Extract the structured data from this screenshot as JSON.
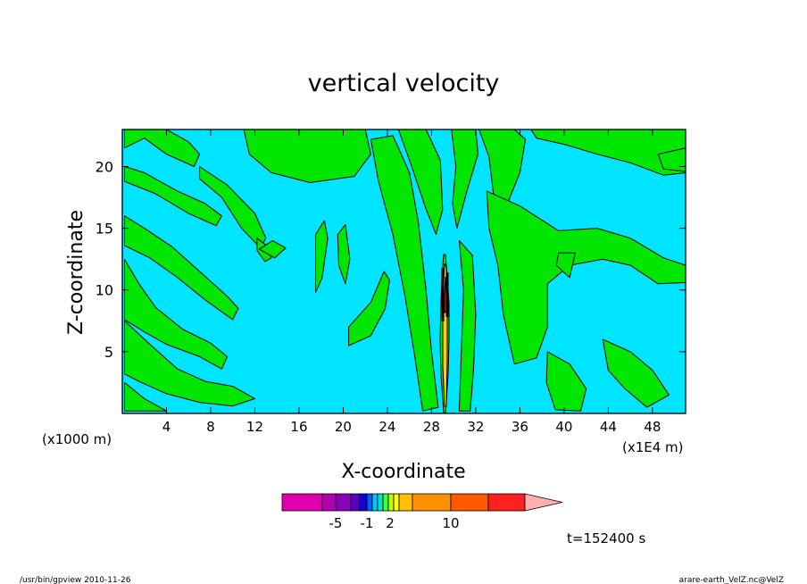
{
  "chart_data": {
    "type": "heatmap",
    "title": "vertical velocity",
    "xlabel": "X-coordinate",
    "ylabel": "Z-coordinate",
    "x_unit_left": "(x1000 m)",
    "x_unit_right": "(x1E4 m)",
    "xlim": [
      0,
      51
    ],
    "ylim": [
      0,
      23
    ],
    "x_ticks": [
      "4",
      "8",
      "12",
      "16",
      "20",
      "24",
      "28",
      "32",
      "36",
      "40",
      "44",
      "48"
    ],
    "x_tick_values": [
      4,
      8,
      12,
      16,
      20,
      24,
      28,
      32,
      36,
      40,
      44,
      48
    ],
    "y_ticks": [
      "5",
      "10",
      "15",
      "20"
    ],
    "y_tick_values": [
      5,
      10,
      15,
      20
    ],
    "colors": {
      "background_band": "#00e5ff",
      "positive_band": "#00e600",
      "contour_line": "#000000"
    },
    "green_regions": [
      {
        "points": [
          [
            0.2,
            23
          ],
          [
            4,
            23
          ],
          [
            6,
            22
          ],
          [
            7,
            21
          ],
          [
            6.5,
            20
          ],
          [
            4,
            21
          ],
          [
            2,
            22.3
          ],
          [
            0.2,
            21.5
          ]
        ]
      },
      {
        "points": [
          [
            0.2,
            20
          ],
          [
            2,
            19.5
          ],
          [
            5,
            18
          ],
          [
            7.5,
            17
          ],
          [
            9,
            16
          ],
          [
            8.5,
            15.2
          ],
          [
            6,
            16.2
          ],
          [
            3,
            17.8
          ],
          [
            0.2,
            18.8
          ]
        ]
      },
      {
        "points": [
          [
            0.2,
            16
          ],
          [
            2,
            15
          ],
          [
            4.5,
            13.5
          ],
          [
            7,
            11.5
          ],
          [
            9.5,
            9.5
          ],
          [
            10.5,
            8.5
          ],
          [
            10,
            7.6
          ],
          [
            7.5,
            9.2
          ],
          [
            5,
            11
          ],
          [
            2.5,
            12.6
          ],
          [
            0.2,
            13.6
          ]
        ]
      },
      {
        "points": [
          [
            0.2,
            12.5
          ],
          [
            1.5,
            10.5
          ],
          [
            3,
            8.6
          ],
          [
            5.5,
            6.8
          ],
          [
            8,
            5.7
          ],
          [
            9.5,
            4.6
          ],
          [
            9,
            3.6
          ],
          [
            7,
            4.6
          ],
          [
            4,
            5.6
          ],
          [
            2,
            6.6
          ],
          [
            0.2,
            7.6
          ]
        ]
      },
      {
        "points": [
          [
            0.2,
            7.5
          ],
          [
            2.5,
            5.6
          ],
          [
            5,
            3.6
          ],
          [
            7.5,
            2.6
          ],
          [
            10,
            2.2
          ],
          [
            12,
            1.2
          ],
          [
            10,
            0.6
          ],
          [
            7,
            0.9
          ],
          [
            4,
            1.6
          ],
          [
            1.5,
            2.6
          ],
          [
            0.2,
            3.2
          ]
        ]
      },
      {
        "points": [
          [
            0.2,
            2.5
          ],
          [
            2,
            1.2
          ],
          [
            4,
            0.2
          ],
          [
            0.2,
            0.2
          ]
        ]
      },
      {
        "points": [
          [
            11,
            23
          ],
          [
            22,
            23
          ],
          [
            22.5,
            21
          ],
          [
            21,
            19.2
          ],
          [
            17,
            18.7
          ],
          [
            13.5,
            19.5
          ],
          [
            11.5,
            21
          ]
        ]
      },
      {
        "points": [
          [
            7,
            20
          ],
          [
            9.5,
            18.5
          ],
          [
            12,
            16.2
          ],
          [
            13,
            14.2
          ],
          [
            12.5,
            13.4
          ],
          [
            10.8,
            15
          ],
          [
            9,
            17.5
          ],
          [
            7,
            19
          ]
        ]
      },
      {
        "points": [
          [
            12.2,
            14.2
          ],
          [
            13.2,
            13.5
          ],
          [
            13.5,
            12.6
          ],
          [
            12.9,
            12.3
          ],
          [
            12.2,
            13.2
          ]
        ]
      },
      {
        "points": [
          [
            12.4,
            13.3
          ],
          [
            13.6,
            14
          ],
          [
            14.8,
            13.4
          ],
          [
            13.8,
            12.6
          ]
        ]
      },
      {
        "points": [
          [
            17.5,
            14.5
          ],
          [
            18.3,
            15.6
          ],
          [
            18.6,
            14.2
          ],
          [
            18.1,
            11
          ],
          [
            17.5,
            9.8
          ]
        ]
      },
      {
        "points": [
          [
            19.5,
            14.5
          ],
          [
            20.2,
            15.3
          ],
          [
            20.6,
            12.5
          ],
          [
            20.2,
            10.5
          ],
          [
            19.6,
            12
          ]
        ]
      },
      {
        "points": [
          [
            22.5,
            22.2
          ],
          [
            24.5,
            22.5
          ],
          [
            26,
            19.5
          ],
          [
            26.8,
            15.5
          ],
          [
            27.5,
            10
          ],
          [
            28,
            5
          ],
          [
            28.6,
            0.5
          ],
          [
            27.2,
            0.2
          ],
          [
            26.5,
            4.5
          ],
          [
            25.6,
            9.5
          ],
          [
            24.5,
            14.5
          ],
          [
            23.2,
            18.8
          ]
        ]
      },
      {
        "points": [
          [
            25,
            23
          ],
          [
            27.5,
            23
          ],
          [
            28.8,
            20.5
          ],
          [
            29,
            16.5
          ],
          [
            28.4,
            14.5
          ],
          [
            27.4,
            16.8
          ],
          [
            26.2,
            20
          ]
        ]
      },
      {
        "points": [
          [
            29.8,
            23
          ],
          [
            32,
            23
          ],
          [
            32.2,
            21
          ],
          [
            31.2,
            18
          ],
          [
            30.3,
            15
          ],
          [
            29.9,
            17
          ],
          [
            30.2,
            20
          ]
        ]
      },
      {
        "points": [
          [
            32.3,
            23
          ],
          [
            35.5,
            23
          ],
          [
            36.5,
            22.2
          ],
          [
            36,
            19.5
          ],
          [
            34.5,
            16.2
          ],
          [
            33.6,
            17.8
          ],
          [
            33.2,
            20.8
          ]
        ]
      },
      {
        "points": [
          [
            30.5,
            14
          ],
          [
            31.7,
            12.8
          ],
          [
            32,
            8
          ],
          [
            31.8,
            3.5
          ],
          [
            31.5,
            0.2
          ],
          [
            30.5,
            0.2
          ],
          [
            30.7,
            5
          ],
          [
            30.9,
            10
          ]
        ]
      },
      {
        "points": [
          [
            20.5,
            7
          ],
          [
            22.5,
            9
          ],
          [
            23.7,
            11.5
          ],
          [
            24.2,
            10.8
          ],
          [
            23.8,
            8.5
          ],
          [
            22.5,
            6.3
          ],
          [
            20.5,
            5.5
          ]
        ]
      },
      {
        "points": [
          [
            37,
            23
          ],
          [
            51,
            23
          ],
          [
            51,
            19.5
          ],
          [
            49,
            19.3
          ],
          [
            46,
            20.3
          ],
          [
            43,
            21
          ],
          [
            40,
            21.8
          ],
          [
            37.5,
            22.3
          ]
        ]
      },
      {
        "points": [
          [
            33,
            18
          ],
          [
            36,
            16.8
          ],
          [
            39.5,
            14.8
          ],
          [
            43,
            15
          ],
          [
            46,
            14.2
          ],
          [
            49,
            12.6
          ],
          [
            51,
            12
          ],
          [
            51,
            10.6
          ],
          [
            48.5,
            10.5
          ],
          [
            46,
            12
          ],
          [
            43.5,
            12.5
          ],
          [
            40.5,
            12
          ],
          [
            38.5,
            10.5
          ],
          [
            38.5,
            7
          ],
          [
            37.5,
            4.5
          ],
          [
            35.5,
            4
          ],
          [
            34.5,
            8
          ],
          [
            34,
            12
          ],
          [
            33.2,
            15
          ]
        ]
      },
      {
        "points": [
          [
            39.5,
            13
          ],
          [
            41,
            13
          ],
          [
            40.5,
            11
          ],
          [
            39.3,
            12
          ]
        ]
      },
      {
        "points": [
          [
            43.5,
            6
          ],
          [
            46,
            5
          ],
          [
            48,
            3.5
          ],
          [
            49.5,
            1.5
          ],
          [
            47.5,
            0.5
          ],
          [
            45.5,
            2
          ],
          [
            44,
            3.5
          ]
        ]
      },
      {
        "points": [
          [
            38.5,
            5
          ],
          [
            40.5,
            4
          ],
          [
            42,
            2
          ],
          [
            41.5,
            0.2
          ],
          [
            39.2,
            0.3
          ],
          [
            38.4,
            2.5
          ]
        ]
      },
      {
        "points": [
          [
            48.5,
            21
          ],
          [
            51,
            21.5
          ],
          [
            51,
            19.6
          ],
          [
            49,
            19.8
          ]
        ]
      }
    ],
    "colorbar": {
      "colors": [
        "#e000b0",
        "#b000b0",
        "#8a00b8",
        "#5a00c0",
        "#1400d8",
        "#0060ff",
        "#00c8ff",
        "#00e8c8",
        "#40ff40",
        "#c0ff00",
        "#ffff00",
        "#ffc000",
        "#ff9000",
        "#ff5a00",
        "#ff2020",
        "#ff7070",
        "#ffb0b0"
      ],
      "tick_labels": [
        "-5",
        "-1",
        "2",
        "10"
      ]
    },
    "time_label": "t=152400 s",
    "footer_left": "/usr/bin/gpview   2010-11-26",
    "footer_right": "arare-earth_VelZ.nc@VelZ"
  }
}
